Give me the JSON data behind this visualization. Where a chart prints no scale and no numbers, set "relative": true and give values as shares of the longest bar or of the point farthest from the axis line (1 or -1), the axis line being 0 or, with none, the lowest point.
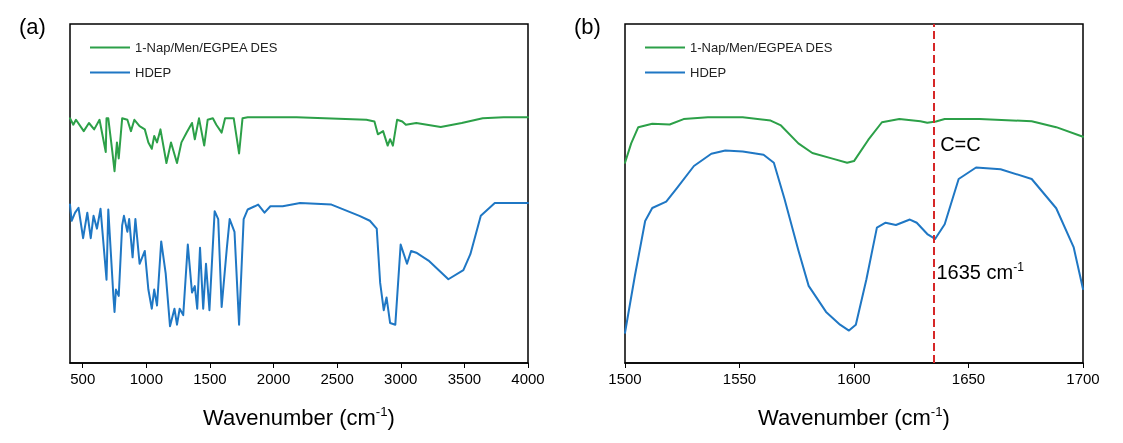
{
  "chart_data": [
    {
      "type": "line",
      "title": "(a)",
      "xlabel": "Wavenumber (cm$^{-1}$)",
      "relative": true,
      "xlim": [
        400,
        4000
      ],
      "xticks": [
        500,
        1000,
        1500,
        2000,
        2500,
        3000,
        3500,
        4000
      ],
      "grid": false,
      "legend": "top left",
      "series": [
        {
          "name": "1-Nap/Men/EGPEA DES",
          "color": "#2ca048",
          "x": [
            400,
            426,
            447,
            508,
            549,
            590,
            632,
            681,
            687,
            701,
            733,
            750,
            769,
            783,
            810,
            851,
            879,
            906,
            947,
            988,
            1016,
            1043,
            1062,
            1084,
            1111,
            1158,
            1194,
            1241,
            1276,
            1317,
            1359,
            1381,
            1414,
            1455,
            1482,
            1523,
            1550,
            1592,
            1619,
            1687,
            1729,
            1756,
            1797,
            2181,
            2730,
            2793,
            2820,
            2861,
            2897,
            2916,
            2938,
            2971,
            3012,
            3040,
            3122,
            3314,
            3479,
            3644,
            3808,
            3973,
            4000
          ],
          "values": [
            0.996,
            0.97,
            0.99,
            0.944,
            0.977,
            0.951,
            0.99,
            0.859,
            0.996,
            0.996,
            0.859,
            0.781,
            0.898,
            0.833,
            0.996,
            0.99,
            0.944,
            0.99,
            0.964,
            0.951,
            0.898,
            0.872,
            0.924,
            0.898,
            0.951,
            0.814,
            0.898,
            0.814,
            0.898,
            0.938,
            0.977,
            0.911,
            0.996,
            0.885,
            0.99,
            0.996,
            0.97,
            0.938,
            0.996,
            0.996,
            0.853,
            0.996,
            1.0,
            1.0,
            0.99,
            0.983,
            0.931,
            0.944,
            0.885,
            0.911,
            0.885,
            0.99,
            0.983,
            0.97,
            0.977,
            0.961,
            0.977,
            0.996,
            1.0,
            1.0,
            1.0
          ]
        },
        {
          "name": "HDEP",
          "color": "#1f77c4",
          "x": [
            400,
            413,
            440,
            467,
            503,
            536,
            563,
            585,
            612,
            640,
            687,
            701,
            741,
            750,
            761,
            783,
            810,
            824,
            851,
            865,
            892,
            914,
            947,
            988,
            1016,
            1043,
            1062,
            1084,
            1117,
            1152,
            1186,
            1221,
            1241,
            1262,
            1290,
            1326,
            1359,
            1381,
            1400,
            1422,
            1447,
            1469,
            1496,
            1537,
            1565,
            1592,
            1633,
            1655,
            1693,
            1729,
            1765,
            1797,
            1852,
            1879,
            1929,
            1975,
            2072,
            2209,
            2455,
            2675,
            2757,
            2811,
            2838,
            2866,
            2888,
            2916,
            2957,
            2999,
            3049,
            3081,
            3122,
            3218,
            3374,
            3492,
            3547,
            3629,
            3739,
            3986,
            4000
          ],
          "values": [
            0.645,
            0.579,
            0.612,
            0.632,
            0.508,
            0.612,
            0.508,
            0.599,
            0.547,
            0.628,
            0.339,
            0.625,
            0.273,
            0.208,
            0.299,
            0.273,
            0.56,
            0.599,
            0.534,
            0.586,
            0.43,
            0.586,
            0.404,
            0.456,
            0.299,
            0.221,
            0.299,
            0.234,
            0.495,
            0.365,
            0.15,
            0.221,
            0.156,
            0.221,
            0.195,
            0.482,
            0.287,
            0.313,
            0.221,
            0.469,
            0.221,
            0.404,
            0.215,
            0.618,
            0.586,
            0.228,
            0.469,
            0.586,
            0.534,
            0.156,
            0.586,
            0.625,
            0.638,
            0.645,
            0.612,
            0.638,
            0.638,
            0.651,
            0.645,
            0.599,
            0.579,
            0.547,
            0.326,
            0.215,
            0.267,
            0.163,
            0.156,
            0.482,
            0.404,
            0.456,
            0.449,
            0.417,
            0.341,
            0.378,
            0.443,
            0.599,
            0.651,
            0.651,
            0.651
          ]
        }
      ]
    },
    {
      "type": "line",
      "title": "(b)",
      "xlabel": "Wavenumber (cm$^{-1}$)",
      "relative": true,
      "xlim": [
        1500,
        1700
      ],
      "xticks": [
        1500,
        1550,
        1600,
        1650,
        1700
      ],
      "grid": false,
      "legend": "top left",
      "ref_lines": [
        {
          "axis": "x",
          "value": 1635,
          "label": "C=C",
          "color": "#d62728",
          "line_style": "dashed"
        }
      ],
      "annotations": [
        {
          "text": "1635 cm$^{-1}$",
          "x": 1636,
          "y": 0.37
        }
      ],
      "series": [
        {
          "name": "1-Nap/Men/EGPEA DES",
          "color": "#2ca048",
          "x": [
            1500,
            1502.7,
            1505.8,
            1511.9,
            1519.5,
            1525.6,
            1536.2,
            1551.4,
            1563.6,
            1568.1,
            1575.7,
            1581.8,
            1591,
            1597,
            1600,
            1606.2,
            1612.2,
            1619.8,
            1629,
            1632,
            1635.8,
            1639.6,
            1654.8,
            1677.6,
            1688.3,
            1700
          ],
          "values": [
            0.815,
            0.894,
            0.96,
            0.974,
            0.971,
            0.993,
            1.0,
            1.0,
            0.987,
            0.967,
            0.894,
            0.855,
            0.831,
            0.815,
            0.822,
            0.908,
            0.98,
            0.993,
            0.984,
            0.978,
            0.983,
            0.993,
            0.993,
            0.984,
            0.96,
            0.921
          ]
        },
        {
          "name": "HDEP",
          "color": "#1f77c4",
          "x": [
            1500,
            1504.3,
            1508.8,
            1511.9,
            1518,
            1522.5,
            1530.1,
            1537.7,
            1543.8,
            1551.4,
            1560.5,
            1565,
            1569.6,
            1575.7,
            1580.2,
            1587.8,
            1593.9,
            1597.8,
            1600.8,
            1605.4,
            1610,
            1613.8,
            1618.3,
            1624.4,
            1627.4,
            1632,
            1635.4,
            1639.6,
            1645.7,
            1653.3,
            1664,
            1677.6,
            1688.3,
            1695.9,
            1700
          ],
          "values": [
            0.123,
            0.354,
            0.578,
            0.631,
            0.657,
            0.71,
            0.802,
            0.852,
            0.865,
            0.861,
            0.848,
            0.815,
            0.67,
            0.459,
            0.314,
            0.208,
            0.156,
            0.132,
            0.156,
            0.34,
            0.551,
            0.571,
            0.562,
            0.584,
            0.571,
            0.525,
            0.505,
            0.565,
            0.749,
            0.796,
            0.789,
            0.749,
            0.63,
            0.472,
            0.301
          ]
        }
      ]
    }
  ]
}
